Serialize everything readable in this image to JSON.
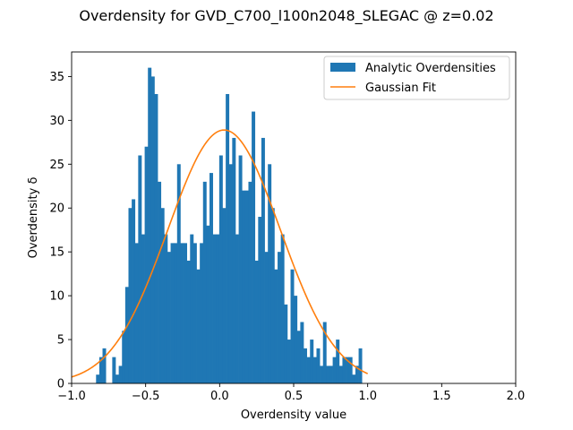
{
  "chart_data": {
    "type": "bar",
    "title": "Overdensity for GVD_C700_l100n2048_SLEGAC @ z=0.02",
    "xlabel": "Overdensity value",
    "ylabel": "Overdensity δ",
    "xlim": [
      -1.0,
      2.0
    ],
    "ylim": [
      0,
      37.8
    ],
    "xticks": [
      "-1.0",
      "-0.5",
      "0.0",
      "0.5",
      "1.0",
      "1.5",
      "2.0"
    ],
    "yticks": [
      "0",
      "5",
      "10",
      "15",
      "20",
      "25",
      "30",
      "35"
    ],
    "grid": false,
    "legend": {
      "position": "top-right"
    },
    "histogram": {
      "name": "Analytic Overdensities",
      "color": "#1f77b4",
      "bin_start": -0.835,
      "bin_width": 0.0219,
      "counts": [
        1,
        3,
        4,
        0,
        0,
        3,
        1,
        2,
        6,
        11,
        20,
        21,
        16,
        26,
        17,
        27,
        36,
        35,
        33,
        23,
        20,
        17,
        15,
        16,
        16,
        25,
        16,
        16,
        14,
        17,
        16,
        13,
        16,
        23,
        18,
        24,
        17,
        17,
        26,
        20,
        33,
        25,
        28,
        17,
        26,
        22,
        22,
        23,
        31,
        14,
        19,
        28,
        15,
        25,
        20,
        13,
        15,
        17,
        9,
        5,
        13,
        10,
        6,
        7,
        4,
        3,
        5,
        3,
        4,
        2,
        7,
        2,
        2,
        3,
        5,
        2,
        3,
        3,
        3,
        1,
        2,
        4
      ]
    },
    "fit": {
      "name": "Gaussian Fit",
      "color": "#ff7f0e",
      "amplitude": 28.9,
      "mean": 0.03,
      "sigma": 0.38,
      "x_range": [
        -1.0,
        1.0
      ]
    }
  }
}
